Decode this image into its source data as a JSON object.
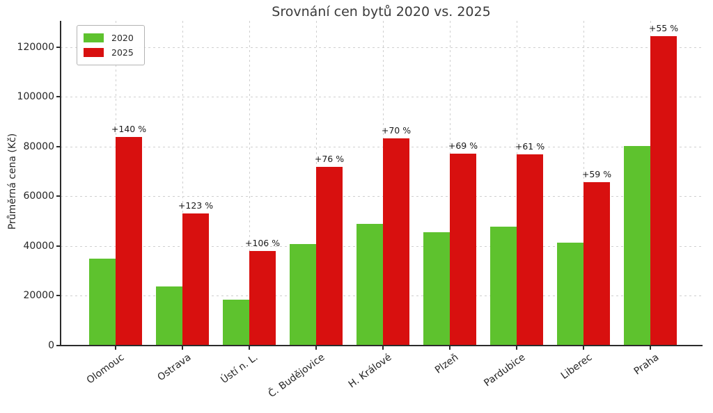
{
  "title": "Srovnání cen bytů 2020 vs. 2025",
  "ylabel": "Průměrná cena (Kč)",
  "colors": {
    "series_2020": "#5ec22e",
    "series_2025": "#d8100f",
    "grid": "#cfcfcf",
    "spine": "#2b2b2b",
    "text": "#262626"
  },
  "legend": {
    "position": "upper-left",
    "entries": [
      "2020",
      "2025"
    ]
  },
  "chart_data": {
    "type": "bar",
    "title": "Srovnání cen bytů 2020 vs. 2025",
    "xlabel": "",
    "ylabel": "Průměrná cena (Kč)",
    "categories": [
      "Olomouc",
      "Ostrava",
      "Ústí n. L.",
      "Č. Budějovice",
      "H. Králové",
      "Plzeň",
      "Pardubice",
      "Liberec",
      "Praha"
    ],
    "series": [
      {
        "name": "2020",
        "color": "#5ec22e",
        "values": [
          35000,
          23800,
          18400,
          40800,
          49000,
          45600,
          47700,
          41400,
          80300
        ]
      },
      {
        "name": "2025",
        "color": "#d8100f",
        "values": [
          84000,
          53100,
          37900,
          71800,
          83300,
          77100,
          76800,
          65800,
          124500
        ]
      }
    ],
    "annotations": [
      "+140 %",
      "+123 %",
      "+106 %",
      "+76 %",
      "+70 %",
      "+69 %",
      "+61 %",
      "+59 %",
      "+55 %"
    ],
    "ylim": [
      0,
      130600
    ],
    "yticks": [
      0,
      20000,
      40000,
      60000,
      80000,
      100000,
      120000
    ],
    "ytick_labels": [
      "0",
      "20000",
      "40000",
      "60000",
      "80000",
      "100000",
      "120000"
    ],
    "grid": true,
    "grid_style": "dashed",
    "legend_position": "upper left"
  }
}
